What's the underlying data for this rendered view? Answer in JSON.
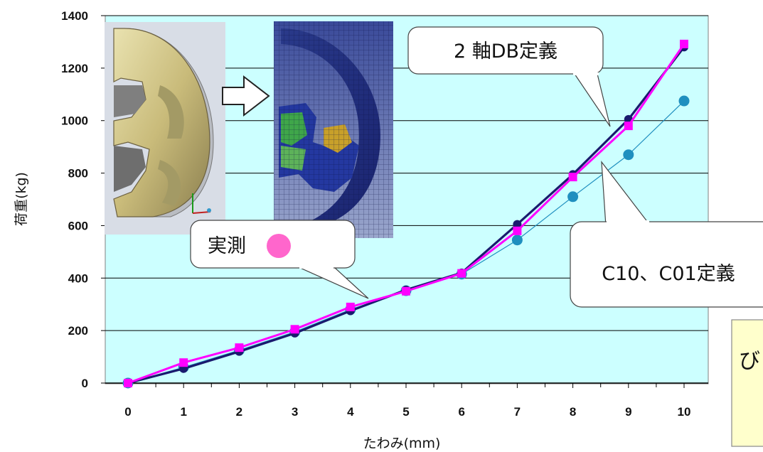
{
  "chart_data": {
    "type": "line",
    "xlabel": "たわみ(mm)",
    "ylabel": "荷重(kg)",
    "xlim": [
      0,
      10
    ],
    "ylim": [
      0,
      1400
    ],
    "x_ticks": [
      "0",
      "1",
      "2",
      "3",
      "4",
      "5",
      "6",
      "7",
      "8",
      "9",
      "10"
    ],
    "y_ticks": [
      "0",
      "200",
      "400",
      "600",
      "800",
      "1000",
      "1200",
      "1400"
    ],
    "grid": "horizontal",
    "series": [
      {
        "name": "2軸DB定義",
        "color": "#1a1a6e",
        "marker": "circle",
        "x": [
          0,
          1,
          2,
          3,
          4,
          5,
          6,
          7,
          8,
          9,
          10
        ],
        "y": [
          0,
          55,
          120,
          190,
          275,
          355,
          420,
          605,
          795,
          1005,
          1280
        ]
      },
      {
        "name": "C10、C01定義",
        "color": "#1f8fbf",
        "marker": "circle",
        "x": [
          0,
          1,
          2,
          3,
          4,
          5,
          6,
          7,
          8,
          9,
          10
        ],
        "y": [
          0,
          60,
          125,
          195,
          280,
          352,
          415,
          545,
          710,
          870,
          1075
        ]
      },
      {
        "name": "実測",
        "color": "#ff00ff",
        "marker": "square",
        "x": [
          0,
          1,
          2,
          3,
          4,
          5,
          6,
          7,
          8,
          9,
          10
        ],
        "y": [
          0,
          78,
          135,
          205,
          290,
          350,
          418,
          580,
          785,
          980,
          1292
        ]
      }
    ]
  },
  "callouts": {
    "biaxial": "2 軸DB定義",
    "c10c01": "C10、C01定義",
    "measured": "実測",
    "fragment": "び"
  },
  "inset_arrow_label": "",
  "colors": {
    "plot_bg": "#ccffff",
    "grid": "#000000",
    "measured_dot": "#ff66cc",
    "note_bg": "#ffffcc"
  }
}
